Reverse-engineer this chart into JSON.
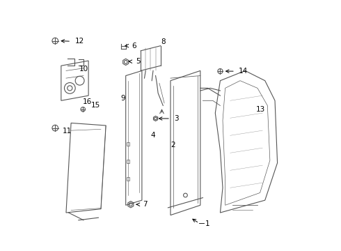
{
  "background_color": "#ffffff",
  "line_color": "#555555",
  "text_color": "#000000",
  "fig_width": 4.9,
  "fig_height": 3.6,
  "dpi": 100
}
